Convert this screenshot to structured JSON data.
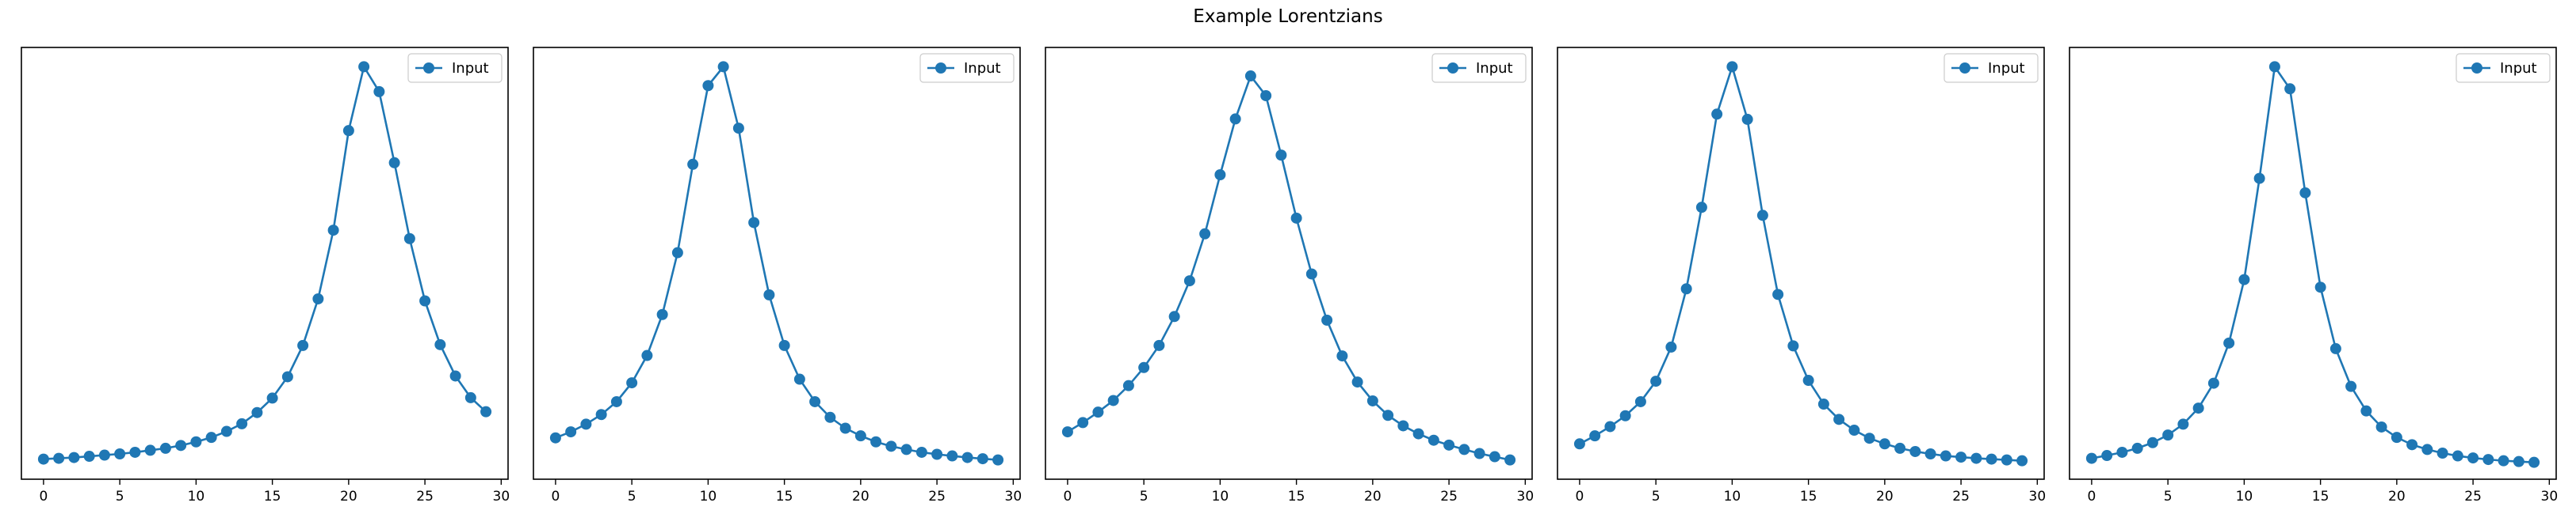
{
  "suptitle": "Example Lorentzians",
  "chart_data": [
    {
      "type": "line",
      "series": [
        {
          "name": "Input",
          "x": [
            0,
            1,
            2,
            3,
            4,
            5,
            6,
            7,
            8,
            9,
            10,
            11,
            12,
            13,
            14,
            15,
            16,
            17,
            18,
            19,
            20,
            21,
            22,
            23,
            24,
            25,
            26,
            27,
            28,
            29
          ],
          "values": [
            0.023,
            0.025,
            0.027,
            0.03,
            0.033,
            0.036,
            0.04,
            0.045,
            0.05,
            0.057,
            0.066,
            0.077,
            0.092,
            0.111,
            0.139,
            0.175,
            0.228,
            0.306,
            0.422,
            0.593,
            0.841,
            1.0,
            0.938,
            0.761,
            0.572,
            0.417,
            0.308,
            0.23,
            0.176,
            0.141
          ]
        }
      ],
      "xticks": [
        0,
        5,
        10,
        15,
        20,
        25,
        30
      ],
      "xlim": [
        -1.45,
        30.45
      ],
      "ylim": [
        -0.027,
        1.048
      ],
      "marker": "circle",
      "legend": "upper right",
      "grid": false,
      "color": "#1f77b4"
    },
    {
      "type": "line",
      "series": [
        {
          "name": "Input",
          "x": [
            0,
            1,
            2,
            3,
            4,
            5,
            6,
            7,
            8,
            9,
            10,
            11,
            12,
            13,
            14,
            15,
            16,
            17,
            18,
            19,
            20,
            21,
            22,
            23,
            24,
            25,
            26,
            27,
            28,
            29
          ],
          "values": [
            0.076,
            0.091,
            0.11,
            0.134,
            0.166,
            0.213,
            0.281,
            0.383,
            0.537,
            0.757,
            0.953,
            1.0,
            0.847,
            0.612,
            0.432,
            0.306,
            0.222,
            0.166,
            0.127,
            0.1,
            0.081,
            0.066,
            0.055,
            0.047,
            0.04,
            0.035,
            0.031,
            0.027,
            0.024,
            0.021
          ]
        }
      ],
      "xticks": [
        0,
        5,
        10,
        15,
        20,
        25,
        30
      ],
      "xlim": [
        -1.45,
        30.45
      ],
      "ylim": [
        -0.027,
        1.048
      ],
      "marker": "circle",
      "legend": "upper right",
      "grid": false,
      "color": "#1f77b4"
    },
    {
      "type": "line",
      "series": [
        {
          "name": "Input",
          "x": [
            0,
            1,
            2,
            3,
            4,
            5,
            6,
            7,
            8,
            9,
            10,
            11,
            12,
            13,
            14,
            15,
            16,
            17,
            18,
            19,
            20,
            21,
            22,
            23,
            24,
            25,
            26,
            27,
            28,
            29
          ],
          "values": [
            0.091,
            0.114,
            0.14,
            0.169,
            0.206,
            0.251,
            0.306,
            0.378,
            0.467,
            0.584,
            0.731,
            0.87,
            0.977,
            0.928,
            0.78,
            0.623,
            0.484,
            0.369,
            0.28,
            0.215,
            0.168,
            0.132,
            0.106,
            0.086,
            0.07,
            0.058,
            0.047,
            0.037,
            0.029,
            0.021
          ]
        }
      ],
      "xticks": [
        0,
        5,
        10,
        15,
        20,
        25,
        30
      ],
      "xlim": [
        -1.45,
        30.45
      ],
      "ylim": [
        -0.027,
        1.048
      ],
      "marker": "circle",
      "legend": "upper right",
      "grid": false,
      "color": "#1f77b4"
    },
    {
      "type": "line",
      "series": [
        {
          "name": "Input",
          "x": [
            0,
            1,
            2,
            3,
            4,
            5,
            6,
            7,
            8,
            9,
            10,
            11,
            12,
            13,
            14,
            15,
            16,
            17,
            18,
            19,
            20,
            21,
            22,
            23,
            24,
            25,
            26,
            27,
            28,
            29
          ],
          "values": [
            0.061,
            0.081,
            0.104,
            0.131,
            0.166,
            0.217,
            0.302,
            0.447,
            0.65,
            0.882,
            1.0,
            0.869,
            0.63,
            0.433,
            0.305,
            0.219,
            0.16,
            0.122,
            0.095,
            0.075,
            0.061,
            0.05,
            0.042,
            0.036,
            0.031,
            0.028,
            0.025,
            0.023,
            0.021,
            0.019
          ]
        }
      ],
      "xticks": [
        0,
        5,
        10,
        15,
        20,
        25,
        30
      ],
      "xlim": [
        -1.45,
        30.45
      ],
      "ylim": [
        -0.027,
        1.048
      ],
      "marker": "circle",
      "legend": "upper right",
      "grid": false,
      "color": "#1f77b4"
    },
    {
      "type": "line",
      "series": [
        {
          "name": "Input",
          "x": [
            0,
            1,
            2,
            3,
            4,
            5,
            6,
            7,
            8,
            9,
            10,
            11,
            12,
            13,
            14,
            15,
            16,
            17,
            18,
            19,
            20,
            21,
            22,
            23,
            24,
            25,
            26,
            27,
            28,
            29
          ],
          "values": [
            0.025,
            0.032,
            0.04,
            0.05,
            0.064,
            0.083,
            0.11,
            0.15,
            0.212,
            0.312,
            0.47,
            0.722,
            1.0,
            0.945,
            0.686,
            0.451,
            0.298,
            0.204,
            0.143,
            0.103,
            0.077,
            0.059,
            0.047,
            0.038,
            0.031,
            0.026,
            0.022,
            0.019,
            0.017,
            0.015
          ]
        }
      ],
      "xticks": [
        0,
        5,
        10,
        15,
        20,
        25,
        30
      ],
      "xlim": [
        -1.45,
        30.45
      ],
      "ylim": [
        -0.027,
        1.048
      ],
      "marker": "circle",
      "legend": "upper right",
      "grid": false,
      "color": "#1f77b4"
    }
  ]
}
